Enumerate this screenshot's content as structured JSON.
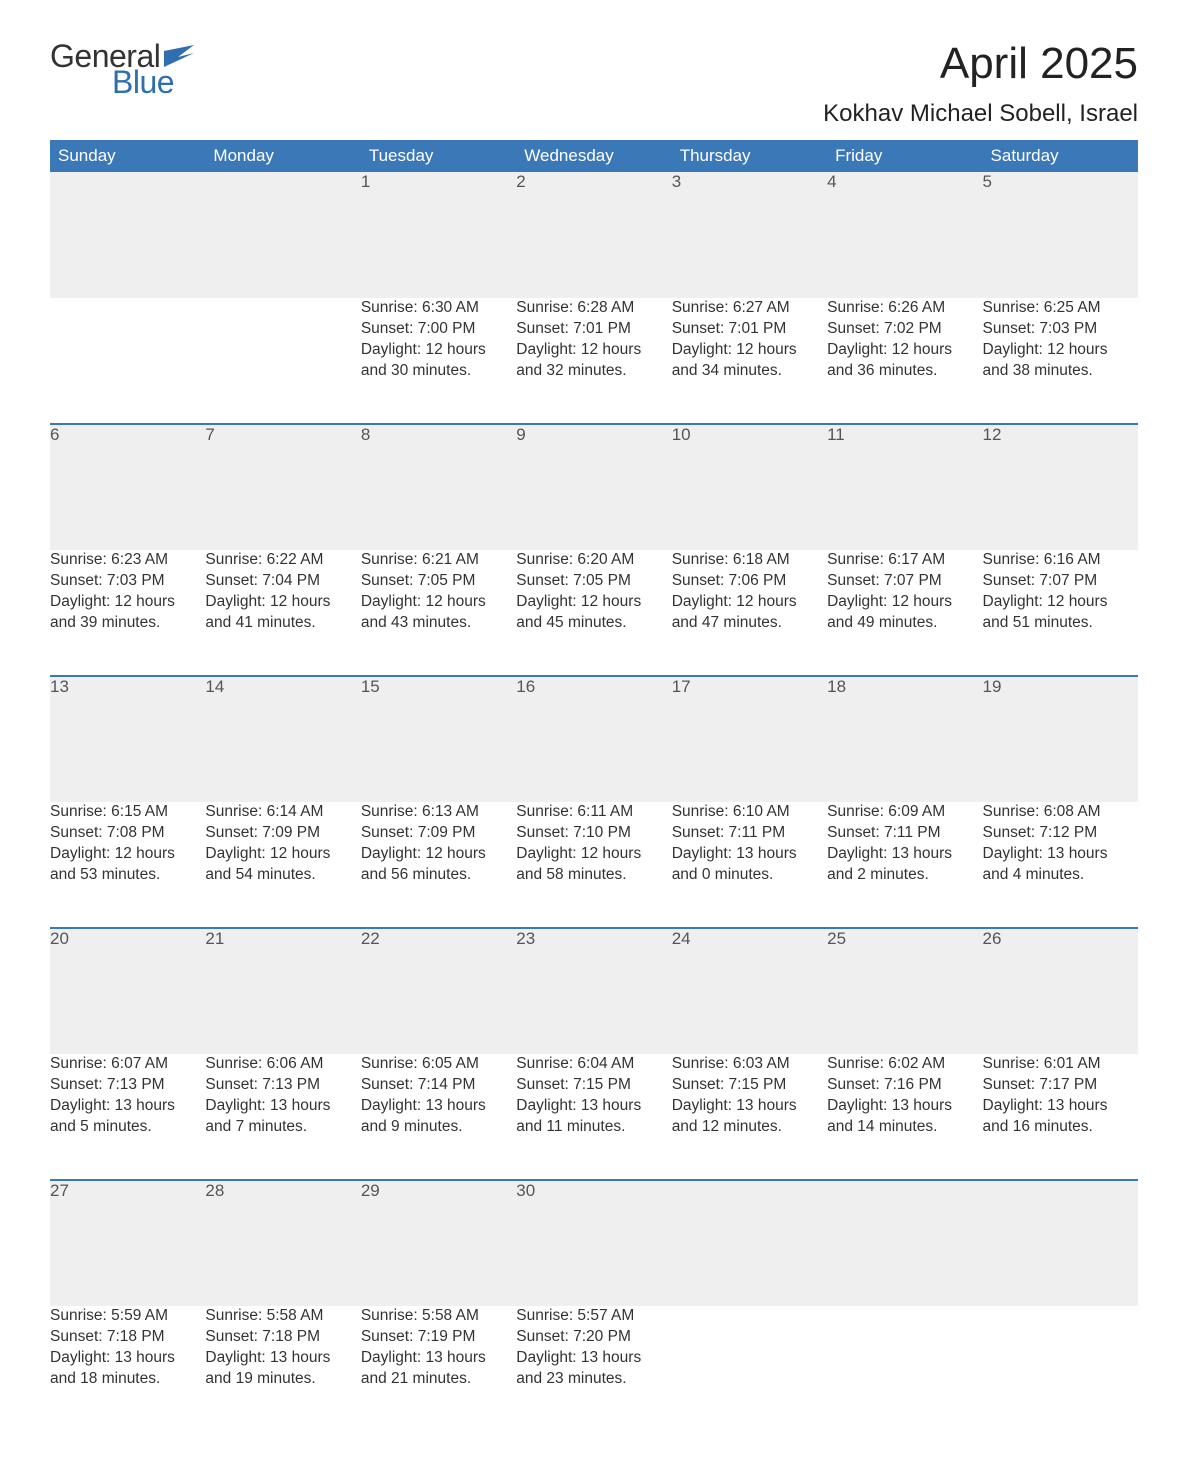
{
  "brand": {
    "word1": "General",
    "word2": "Blue",
    "flag_color": "#2f6fb0"
  },
  "title": "April 2025",
  "location": "Kokhav Michael Sobell, Israel",
  "colors": {
    "header_bg": "#3b78b8",
    "header_text": "#ffffff",
    "daynum_bg": "#efefef",
    "week_divider": "#3b78b8",
    "body_text": "#333333",
    "page_bg": "#ffffff"
  },
  "fonts": {
    "title_pt": 44,
    "location_pt": 24,
    "header_pt": 17,
    "cell_pt": 15.5,
    "logo_pt": 32
  },
  "weekdays": [
    "Sunday",
    "Monday",
    "Tuesday",
    "Wednesday",
    "Thursday",
    "Friday",
    "Saturday"
  ],
  "weeks": [
    [
      null,
      null,
      {
        "day": "1",
        "sunrise": "Sunrise: 6:30 AM",
        "sunset": "Sunset: 7:00 PM",
        "dl1": "Daylight: 12 hours",
        "dl2": "and 30 minutes."
      },
      {
        "day": "2",
        "sunrise": "Sunrise: 6:28 AM",
        "sunset": "Sunset: 7:01 PM",
        "dl1": "Daylight: 12 hours",
        "dl2": "and 32 minutes."
      },
      {
        "day": "3",
        "sunrise": "Sunrise: 6:27 AM",
        "sunset": "Sunset: 7:01 PM",
        "dl1": "Daylight: 12 hours",
        "dl2": "and 34 minutes."
      },
      {
        "day": "4",
        "sunrise": "Sunrise: 6:26 AM",
        "sunset": "Sunset: 7:02 PM",
        "dl1": "Daylight: 12 hours",
        "dl2": "and 36 minutes."
      },
      {
        "day": "5",
        "sunrise": "Sunrise: 6:25 AM",
        "sunset": "Sunset: 7:03 PM",
        "dl1": "Daylight: 12 hours",
        "dl2": "and 38 minutes."
      }
    ],
    [
      {
        "day": "6",
        "sunrise": "Sunrise: 6:23 AM",
        "sunset": "Sunset: 7:03 PM",
        "dl1": "Daylight: 12 hours",
        "dl2": "and 39 minutes."
      },
      {
        "day": "7",
        "sunrise": "Sunrise: 6:22 AM",
        "sunset": "Sunset: 7:04 PM",
        "dl1": "Daylight: 12 hours",
        "dl2": "and 41 minutes."
      },
      {
        "day": "8",
        "sunrise": "Sunrise: 6:21 AM",
        "sunset": "Sunset: 7:05 PM",
        "dl1": "Daylight: 12 hours",
        "dl2": "and 43 minutes."
      },
      {
        "day": "9",
        "sunrise": "Sunrise: 6:20 AM",
        "sunset": "Sunset: 7:05 PM",
        "dl1": "Daylight: 12 hours",
        "dl2": "and 45 minutes."
      },
      {
        "day": "10",
        "sunrise": "Sunrise: 6:18 AM",
        "sunset": "Sunset: 7:06 PM",
        "dl1": "Daylight: 12 hours",
        "dl2": "and 47 minutes."
      },
      {
        "day": "11",
        "sunrise": "Sunrise: 6:17 AM",
        "sunset": "Sunset: 7:07 PM",
        "dl1": "Daylight: 12 hours",
        "dl2": "and 49 minutes."
      },
      {
        "day": "12",
        "sunrise": "Sunrise: 6:16 AM",
        "sunset": "Sunset: 7:07 PM",
        "dl1": "Daylight: 12 hours",
        "dl2": "and 51 minutes."
      }
    ],
    [
      {
        "day": "13",
        "sunrise": "Sunrise: 6:15 AM",
        "sunset": "Sunset: 7:08 PM",
        "dl1": "Daylight: 12 hours",
        "dl2": "and 53 minutes."
      },
      {
        "day": "14",
        "sunrise": "Sunrise: 6:14 AM",
        "sunset": "Sunset: 7:09 PM",
        "dl1": "Daylight: 12 hours",
        "dl2": "and 54 minutes."
      },
      {
        "day": "15",
        "sunrise": "Sunrise: 6:13 AM",
        "sunset": "Sunset: 7:09 PM",
        "dl1": "Daylight: 12 hours",
        "dl2": "and 56 minutes."
      },
      {
        "day": "16",
        "sunrise": "Sunrise: 6:11 AM",
        "sunset": "Sunset: 7:10 PM",
        "dl1": "Daylight: 12 hours",
        "dl2": "and 58 minutes."
      },
      {
        "day": "17",
        "sunrise": "Sunrise: 6:10 AM",
        "sunset": "Sunset: 7:11 PM",
        "dl1": "Daylight: 13 hours",
        "dl2": "and 0 minutes."
      },
      {
        "day": "18",
        "sunrise": "Sunrise: 6:09 AM",
        "sunset": "Sunset: 7:11 PM",
        "dl1": "Daylight: 13 hours",
        "dl2": "and 2 minutes."
      },
      {
        "day": "19",
        "sunrise": "Sunrise: 6:08 AM",
        "sunset": "Sunset: 7:12 PM",
        "dl1": "Daylight: 13 hours",
        "dl2": "and 4 minutes."
      }
    ],
    [
      {
        "day": "20",
        "sunrise": "Sunrise: 6:07 AM",
        "sunset": "Sunset: 7:13 PM",
        "dl1": "Daylight: 13 hours",
        "dl2": "and 5 minutes."
      },
      {
        "day": "21",
        "sunrise": "Sunrise: 6:06 AM",
        "sunset": "Sunset: 7:13 PM",
        "dl1": "Daylight: 13 hours",
        "dl2": "and 7 minutes."
      },
      {
        "day": "22",
        "sunrise": "Sunrise: 6:05 AM",
        "sunset": "Sunset: 7:14 PM",
        "dl1": "Daylight: 13 hours",
        "dl2": "and 9 minutes."
      },
      {
        "day": "23",
        "sunrise": "Sunrise: 6:04 AM",
        "sunset": "Sunset: 7:15 PM",
        "dl1": "Daylight: 13 hours",
        "dl2": "and 11 minutes."
      },
      {
        "day": "24",
        "sunrise": "Sunrise: 6:03 AM",
        "sunset": "Sunset: 7:15 PM",
        "dl1": "Daylight: 13 hours",
        "dl2": "and 12 minutes."
      },
      {
        "day": "25",
        "sunrise": "Sunrise: 6:02 AM",
        "sunset": "Sunset: 7:16 PM",
        "dl1": "Daylight: 13 hours",
        "dl2": "and 14 minutes."
      },
      {
        "day": "26",
        "sunrise": "Sunrise: 6:01 AM",
        "sunset": "Sunset: 7:17 PM",
        "dl1": "Daylight: 13 hours",
        "dl2": "and 16 minutes."
      }
    ],
    [
      {
        "day": "27",
        "sunrise": "Sunrise: 5:59 AM",
        "sunset": "Sunset: 7:18 PM",
        "dl1": "Daylight: 13 hours",
        "dl2": "and 18 minutes."
      },
      {
        "day": "28",
        "sunrise": "Sunrise: 5:58 AM",
        "sunset": "Sunset: 7:18 PM",
        "dl1": "Daylight: 13 hours",
        "dl2": "and 19 minutes."
      },
      {
        "day": "29",
        "sunrise": "Sunrise: 5:58 AM",
        "sunset": "Sunset: 7:19 PM",
        "dl1": "Daylight: 13 hours",
        "dl2": "and 21 minutes."
      },
      {
        "day": "30",
        "sunrise": "Sunrise: 5:57 AM",
        "sunset": "Sunset: 7:20 PM",
        "dl1": "Daylight: 13 hours",
        "dl2": "and 23 minutes."
      },
      null,
      null,
      null
    ]
  ]
}
